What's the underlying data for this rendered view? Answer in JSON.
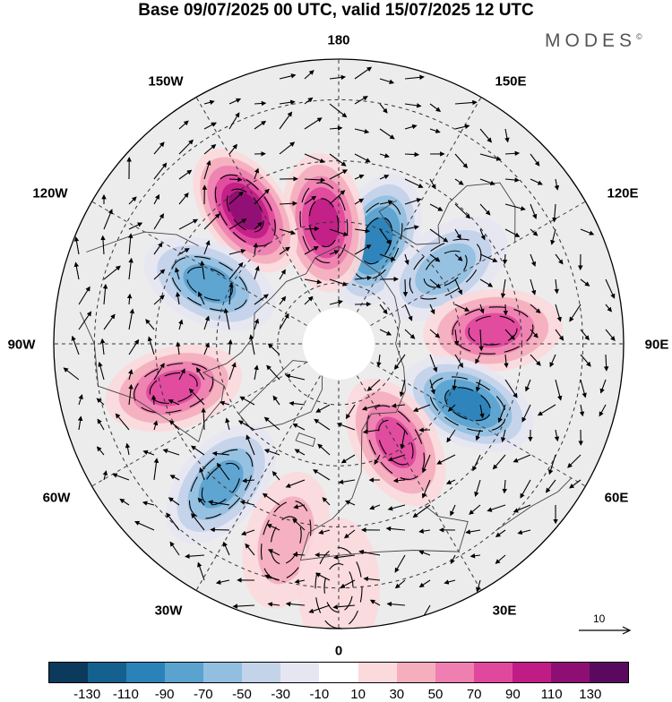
{
  "title": "Base 09/07/2025 00 UTC, valid 15/07/2025 12 UTC",
  "brand": "MODES",
  "brand_mark": "©",
  "longitude_labels": {
    "n180": "180",
    "w150": "150W",
    "e150": "150E",
    "w120": "120W",
    "e120": "120E",
    "w90": "90W",
    "e90": "90E",
    "w60": "60W",
    "e60": "60E",
    "w30": "30W",
    "e30": "30E",
    "s0": "0"
  },
  "reference_vector_label": "10",
  "colorbar": {
    "colors": [
      "#0b3a5c",
      "#14618f",
      "#2b82b8",
      "#5aa3cf",
      "#92bfe0",
      "#c3d3ea",
      "#e6e6f2",
      "#ffffff",
      "#fbd9dc",
      "#f4aebd",
      "#ee7fb0",
      "#e0489d",
      "#c01c86",
      "#8e0f73",
      "#5a0a5e"
    ],
    "tick_labels": [
      "-130",
      "-110",
      "-90",
      "-70",
      "-50",
      "-30",
      "-10",
      "10",
      "30",
      "50",
      "70",
      "90",
      "110",
      "130"
    ]
  },
  "anomaly_centers": [
    {
      "lon": 160,
      "lat": 63,
      "value": -95
    },
    {
      "lon": -173,
      "lat": 60,
      "value": 95
    },
    {
      "lon": -145,
      "lat": 50,
      "value": 110
    },
    {
      "lon": -115,
      "lat": 55,
      "value": -85
    },
    {
      "lon": 125,
      "lat": 58,
      "value": -60
    },
    {
      "lon": 95,
      "lat": 52,
      "value": 85
    },
    {
      "lon": 65,
      "lat": 55,
      "value": -90
    },
    {
      "lon": 30,
      "lat": 62,
      "value": 70
    },
    {
      "lon": -75,
      "lat": 48,
      "value": 85
    },
    {
      "lon": -40,
      "lat": 45,
      "value": -80
    },
    {
      "lon": -15,
      "lat": 40,
      "value": 35
    },
    {
      "lon": 0,
      "lat": 30,
      "value": 25
    }
  ]
}
